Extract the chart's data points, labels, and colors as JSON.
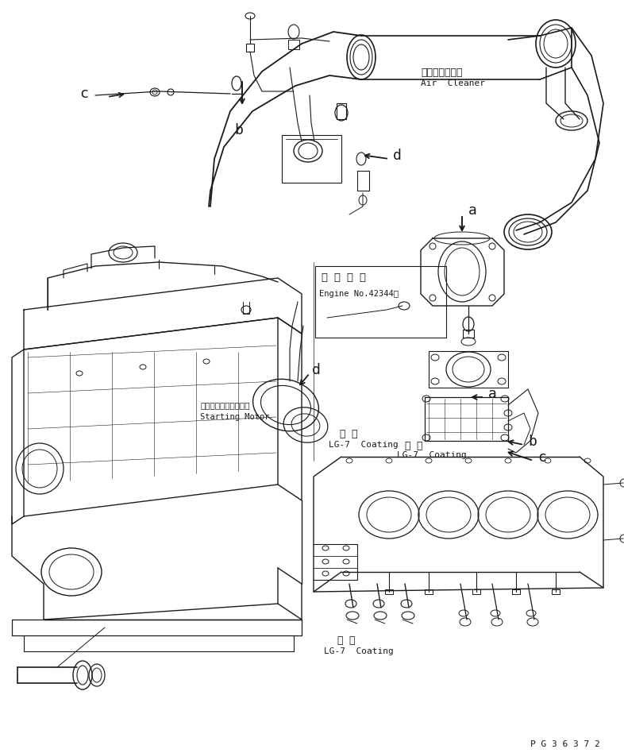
{
  "bg_color": "#ffffff",
  "line_color": "#1a1a1a",
  "fig_width": 7.86,
  "fig_height": 9.48,
  "dpi": 100,
  "labels": {
    "air_cleaner_jp": "エアークリーナ",
    "air_cleaner_en": "Air  Cleaner",
    "engine_no_jp": "適 用 号 機",
    "engine_no_en": "Engine No.42344～",
    "starting_motor_jp": "スターティングモータ",
    "starting_motor_en": "Starting Motor",
    "coating1_jp": "塗 布",
    "coating1_en": "LG-7  Coating",
    "coating2_jp": "塗 布",
    "coating2_en": "LG-7  Coating",
    "part_no": "P G 3 6 3 7 2"
  }
}
